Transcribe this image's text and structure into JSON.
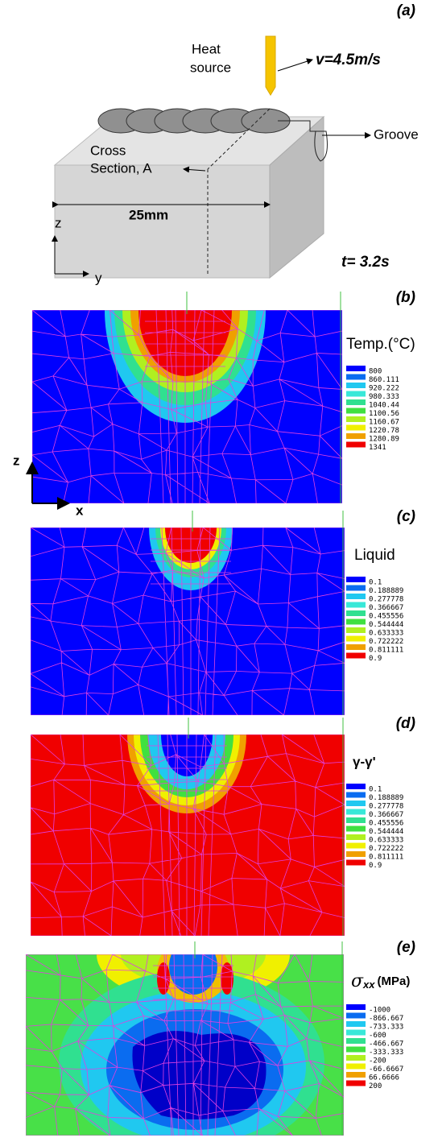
{
  "panel_a": {
    "label": "(a)",
    "heat_source": [
      "Heat",
      "source"
    ],
    "velocity": "v=4.5m/s",
    "groove": "Groove",
    "cross_section": [
      "Cross",
      "Section, A"
    ],
    "length": "25mm",
    "axis_z": "z",
    "axis_y": "y",
    "time": "t= 3.2s"
  },
  "panels": [
    {
      "label": "(b)",
      "legend_title": "Temp.(°C)",
      "axis_z": "z",
      "axis_x": "x",
      "legend_labels": [
        "800",
        "860.111",
        "920.222",
        "980.333",
        "1040.44",
        "1100.56",
        "1160.67",
        "1220.78",
        "1280.89",
        "1341"
      ]
    },
    {
      "label": "(c)",
      "legend_title": "Liquid",
      "legend_labels": [
        "0.1",
        "0.188889",
        "0.277778",
        "0.366667",
        "0.455556",
        "0.544444",
        "0.633333",
        "0.722222",
        "0.811111",
        "0.9"
      ]
    },
    {
      "label": "(d)",
      "legend_title": "γ-γ'",
      "legend_labels": [
        "0.1",
        "0.188889",
        "0.277778",
        "0.366667",
        "0.455556",
        "0.544444",
        "0.633333",
        "0.722222",
        "0.811111",
        "0.9"
      ]
    },
    {
      "label": "(e)",
      "legend_title": {
        "symbol": "σ",
        "subscript": "xx",
        "unit": "(MPa)"
      },
      "legend_labels": [
        "-1000",
        "-866.667",
        "-733.333",
        "-600",
        "-466.667",
        "-333.333",
        "-200",
        "-66.6667",
        "66.6666",
        "200"
      ]
    }
  ]
}
